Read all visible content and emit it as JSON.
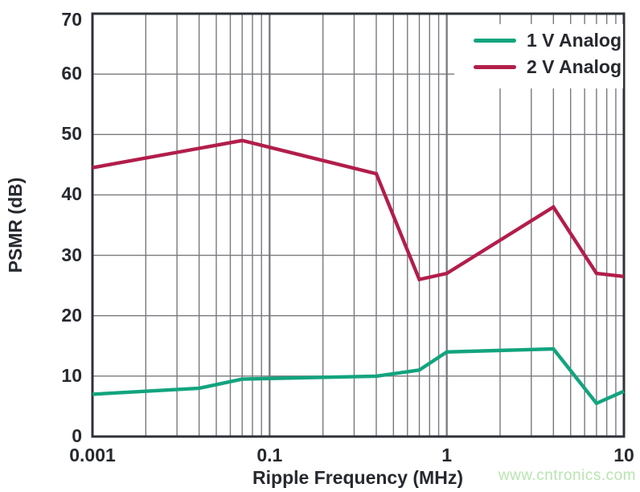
{
  "watermark": {
    "text": "www.cntronics.com",
    "color": "#b9e4b1"
  },
  "chart_data": {
    "type": "line",
    "title": "",
    "xlabel": "Ripple Frequency (MHz)",
    "ylabel": "PSMR (dB)",
    "x_scale": "log",
    "x_tick_labels": [
      "0.001",
      "0.1",
      "1",
      "10"
    ],
    "x_tick_values": [
      0.001,
      0.1,
      1,
      10
    ],
    "y_ticks": [
      0,
      10,
      20,
      30,
      40,
      50,
      60,
      70
    ],
    "ylim": [
      0,
      70
    ],
    "grid": true,
    "minor_log_gridlines": [
      2,
      3,
      4,
      5,
      6,
      7,
      8,
      9
    ],
    "legend_position": "top-right",
    "colors": {
      "text": "#26292e",
      "axis": "#2e3138",
      "grid": "#77797e"
    },
    "series": [
      {
        "name": "1 V Analog",
        "color": "#12a47e",
        "points": [
          [
            0.001,
            7
          ],
          [
            0.004,
            8
          ],
          [
            0.007,
            9.5
          ],
          [
            0.4,
            10
          ],
          [
            0.7,
            11
          ],
          [
            1,
            14
          ],
          [
            4,
            14.5
          ],
          [
            7,
            5.5
          ],
          [
            10,
            7.5
          ]
        ]
      },
      {
        "name": "2 V Analog",
        "color": "#b21e4b",
        "points": [
          [
            0.001,
            44.5
          ],
          [
            0.007,
            49
          ],
          [
            0.4,
            43.5
          ],
          [
            0.7,
            26
          ],
          [
            1,
            27
          ],
          [
            4,
            38
          ],
          [
            7,
            27
          ],
          [
            10,
            26.5
          ]
        ]
      }
    ]
  }
}
